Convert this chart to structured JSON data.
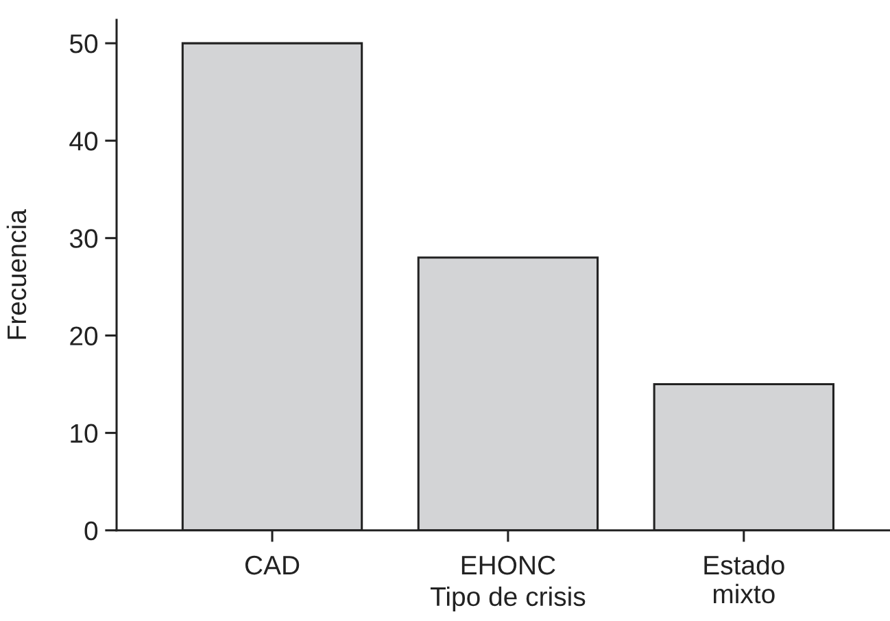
{
  "chart_data": {
    "type": "bar",
    "xlabel": "Tipo de crisis",
    "ylabel": "Frecuencia",
    "categories": [
      "CAD",
      "EHONC",
      "Estado\nmixto"
    ],
    "values": [
      50,
      28,
      15
    ],
    "color": "#d3d4d6",
    "ylim": [
      0,
      52.4
    ],
    "yticks": [
      0,
      10,
      20,
      30,
      40,
      50
    ],
    "grid": false,
    "legend": false
  }
}
